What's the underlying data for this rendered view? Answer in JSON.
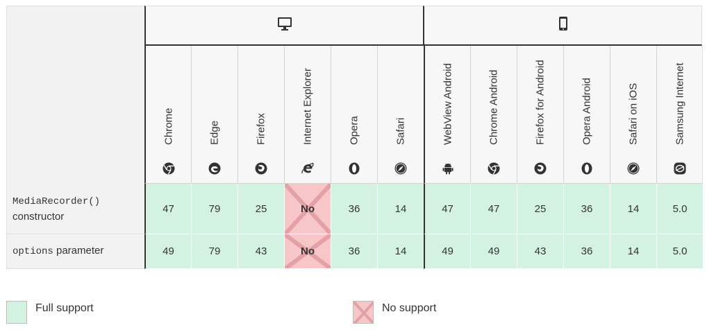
{
  "platforms": {
    "desktop": {
      "icon": "desktop-icon"
    },
    "mobile": {
      "icon": "mobile-icon"
    }
  },
  "browsers": [
    {
      "name": "Chrome",
      "icon": "chrome-icon",
      "group": "desktop"
    },
    {
      "name": "Edge",
      "icon": "edge-icon",
      "group": "desktop"
    },
    {
      "name": "Firefox",
      "icon": "firefox-icon",
      "group": "desktop"
    },
    {
      "name": "Internet Explorer",
      "icon": "ie-icon",
      "group": "desktop"
    },
    {
      "name": "Opera",
      "icon": "opera-icon",
      "group": "desktop"
    },
    {
      "name": "Safari",
      "icon": "safari-icon",
      "group": "desktop"
    },
    {
      "name": "WebView Android",
      "icon": "android-icon",
      "group": "mobile"
    },
    {
      "name": "Chrome Android",
      "icon": "chrome-icon",
      "group": "mobile"
    },
    {
      "name": "Firefox for Android",
      "icon": "firefox-icon",
      "group": "mobile"
    },
    {
      "name": "Opera Android",
      "icon": "opera-icon",
      "group": "mobile"
    },
    {
      "name": "Safari on iOS",
      "icon": "safari-icon",
      "group": "mobile"
    },
    {
      "name": "Samsung Internet",
      "icon": "samsung-icon",
      "group": "mobile"
    }
  ],
  "rows": [
    {
      "code": "MediaRecorder()",
      "text": "constructor",
      "values": [
        "47",
        "79",
        "25",
        "No",
        "36",
        "14",
        "47",
        "47",
        "25",
        "36",
        "14",
        "5.0"
      ],
      "support": [
        "full",
        "full",
        "full",
        "none",
        "full",
        "full",
        "full",
        "full",
        "full",
        "full",
        "full",
        "full"
      ]
    },
    {
      "code": "options",
      "text": "parameter",
      "values": [
        "49",
        "79",
        "43",
        "No",
        "36",
        "14",
        "49",
        "49",
        "43",
        "36",
        "14",
        "5.0"
      ],
      "support": [
        "full",
        "full",
        "full",
        "none",
        "full",
        "full",
        "full",
        "full",
        "full",
        "full",
        "full",
        "full"
      ]
    }
  ],
  "legend": {
    "full": "Full support",
    "none": "No support"
  },
  "colors": {
    "full_support": "#d4f2e1",
    "no_support": "#f7c6c9",
    "header_bg": "#f7f7f7",
    "divider": "#333333"
  }
}
